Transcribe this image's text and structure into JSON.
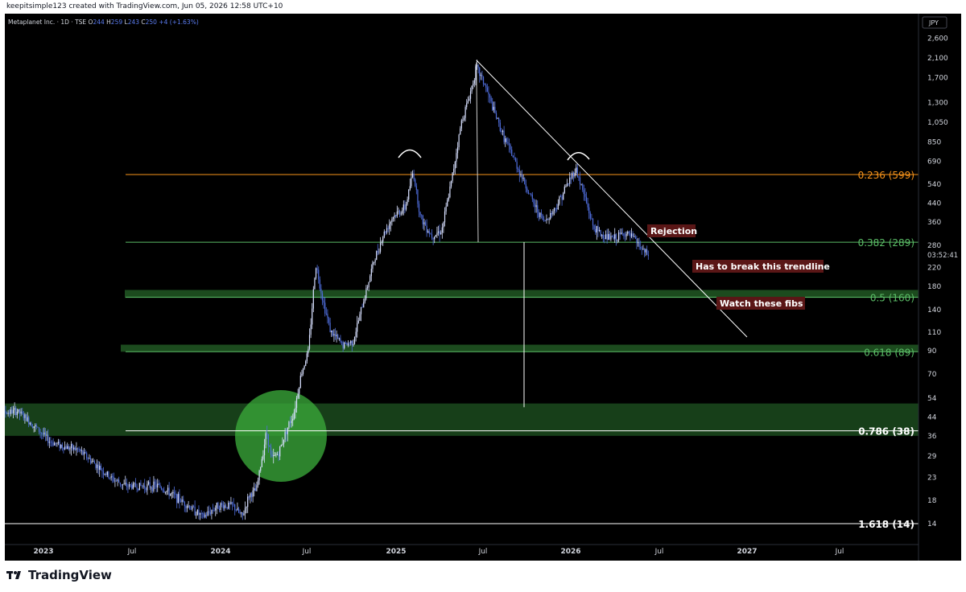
{
  "header": {
    "credit": "keepitsimple123 created with TradingView.com, Jun 05, 2026 12:58 UTC+10"
  },
  "footer": {
    "brand": "TradingView"
  },
  "chart_data": {
    "type": "candlestick",
    "symbol": "Metaplanet Inc.",
    "interval": "1D",
    "exchange": "TSE",
    "ohlc": {
      "o_label": "O",
      "o": "244",
      "h_label": "H",
      "h": "259",
      "l_label": "L",
      "l": "243",
      "c_label": "C",
      "c": "250",
      "change": "+4 (+1.63%)"
    },
    "currency": "JPY",
    "countdown": "03:52:41",
    "y_scale": "log",
    "y_ticks": [
      "2,600",
      "2,100",
      "1,700",
      "1,300",
      "1,050",
      "850",
      "690",
      "540",
      "440",
      "360",
      "280",
      "220",
      "180",
      "140",
      "110",
      "90",
      "70",
      "54",
      "44",
      "36",
      "29",
      "23",
      "18",
      "14"
    ],
    "x_ticks": [
      "2023",
      "Jul",
      "2024",
      "Jul",
      "2025",
      "Jul",
      "2026",
      "Jul",
      "2027",
      "Jul"
    ],
    "fib_levels": [
      {
        "label": "0.236 (599)",
        "value": 599,
        "color": "#f7931a"
      },
      {
        "label": "0.382 (289)",
        "value": 289,
        "color": "#5bbd67"
      },
      {
        "label": "0.5 (160)",
        "value": 160,
        "color": "#5bbd67"
      },
      {
        "label": "0.618 (89)",
        "value": 89,
        "color": "#5bbd67"
      },
      {
        "label": "0.786 (38)",
        "value": 38,
        "color": "#ffffff"
      },
      {
        "label": "1.618 (14)",
        "value": 14,
        "color": "#ffffff"
      }
    ],
    "annotations": [
      "Rejection",
      "Has to break this trendline",
      "Watch these fibs"
    ],
    "price_path": [
      [
        "2022-09-20",
        47
      ],
      [
        "2022-10-15",
        46
      ],
      [
        "2022-11-15",
        47
      ],
      [
        "2022-12-05",
        43
      ],
      [
        "2022-12-25",
        39
      ],
      [
        "2023-01-20",
        34
      ],
      [
        "2023-02-20",
        32
      ],
      [
        "2023-03-20",
        31
      ],
      [
        "2023-04-20",
        27
      ],
      [
        "2023-05-25",
        23
      ],
      [
        "2023-06-25",
        21
      ],
      [
        "2023-08-01",
        21
      ],
      [
        "2023-09-01",
        21
      ],
      [
        "2023-10-01",
        19
      ],
      [
        "2023-11-01",
        17
      ],
      [
        "2023-12-01",
        15
      ],
      [
        "2024-01-01",
        17
      ],
      [
        "2024-02-01",
        17
      ],
      [
        "2024-02-20",
        15
      ],
      [
        "2024-03-05",
        19
      ],
      [
        "2024-03-20",
        20
      ],
      [
        "2024-04-10",
        38
      ],
      [
        "2024-04-20",
        28
      ],
      [
        "2024-05-05",
        30
      ],
      [
        "2024-05-20",
        38
      ],
      [
        "2024-06-05",
        46
      ],
      [
        "2024-06-20",
        70
      ],
      [
        "2024-07-05",
        90
      ],
      [
        "2024-07-20",
        230
      ],
      [
        "2024-08-05",
        150
      ],
      [
        "2024-08-20",
        110
      ],
      [
        "2024-09-15",
        95
      ],
      [
        "2024-10-05",
        100
      ],
      [
        "2024-10-25",
        150
      ],
      [
        "2024-11-15",
        230
      ],
      [
        "2024-12-05",
        310
      ],
      [
        "2024-12-25",
        380
      ],
      [
        "2025-01-20",
        420
      ],
      [
        "2025-02-05",
        620
      ],
      [
        "2025-02-20",
        380
      ],
      [
        "2025-03-15",
        310
      ],
      [
        "2025-04-05",
        330
      ],
      [
        "2025-04-25",
        560
      ],
      [
        "2025-05-15",
        1050
      ],
      [
        "2025-06-01",
        1400
      ],
      [
        "2025-06-15",
        1900
      ],
      [
        "2025-07-01",
        1600
      ],
      [
        "2025-07-20",
        1200
      ],
      [
        "2025-08-10",
        900
      ],
      [
        "2025-09-01",
        700
      ],
      [
        "2025-09-20",
        560
      ],
      [
        "2025-10-10",
        440
      ],
      [
        "2025-11-01",
        360
      ],
      [
        "2025-11-25",
        420
      ],
      [
        "2025-12-15",
        520
      ],
      [
        "2026-01-05",
        640
      ],
      [
        "2026-01-25",
        460
      ],
      [
        "2026-02-10",
        340
      ],
      [
        "2026-03-01",
        310
      ],
      [
        "2026-03-25",
        300
      ],
      [
        "2026-04-15",
        320
      ],
      [
        "2026-05-05",
        300
      ],
      [
        "2026-05-25",
        260
      ],
      [
        "2026-06-05",
        250
      ]
    ]
  }
}
